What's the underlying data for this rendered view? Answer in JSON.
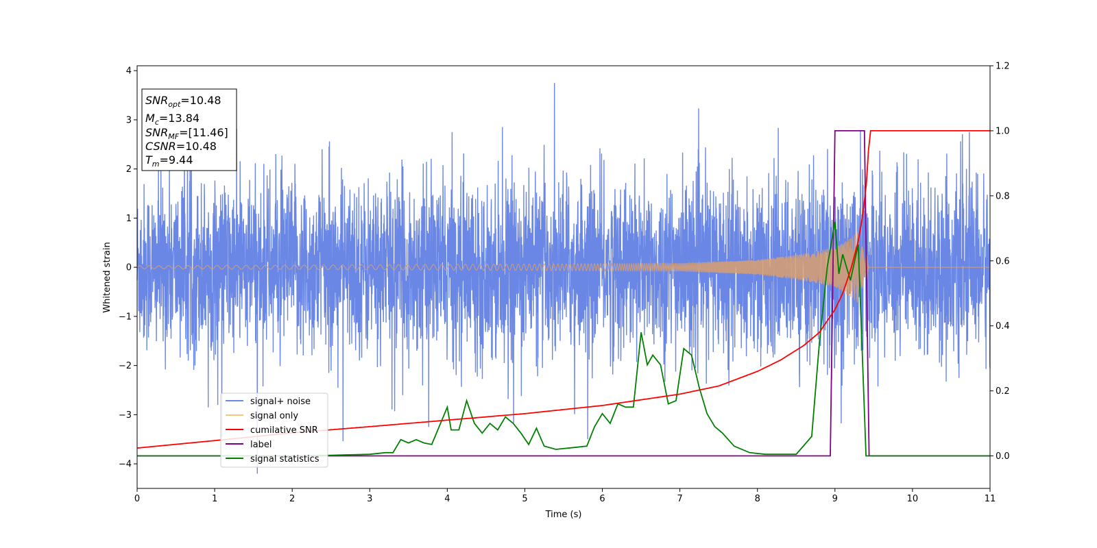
{
  "chart_data": {
    "type": "line",
    "title": "",
    "xlabel": "Time (s)",
    "ylabel": "Whitened strain",
    "xlim": [
      0,
      11
    ],
    "ylim": [
      -4.5,
      4.1
    ],
    "y2lim": [
      -0.1,
      1.2
    ],
    "xticks": [
      "0",
      "1",
      "2",
      "3",
      "4",
      "5",
      "6",
      "7",
      "8",
      "9",
      "10",
      "11"
    ],
    "yticks": [
      "4",
      "3",
      "2",
      "1",
      "0",
      "−1",
      "−2",
      "−3",
      "−4"
    ],
    "y2ticks": [
      "1.2",
      "1.0",
      "0.8",
      "0.6",
      "0.4",
      "0.2",
      "0.0"
    ],
    "grid": false,
    "legend_position": "lower-left",
    "legend": [
      "signal+ noise",
      "signal only",
      "cumilative SNR",
      "label",
      "signal statistics"
    ],
    "colors": {
      "signal_noise": "#6a87e6",
      "signal_only": "#f3c87d",
      "signal_only_burst": "#d9a070",
      "cumulative_snr": "#ff0000",
      "label": "#800080",
      "signal_statistics": "#008000"
    },
    "info_box": {
      "snr_opt": "10.48",
      "mc": "13.84",
      "snr_mf": "[11.46]",
      "csnr": "10.48",
      "tm": "9.44"
    },
    "series": [
      {
        "name": "cumilative SNR",
        "axis": "right",
        "x": [
          0,
          1,
          2,
          3,
          4,
          5,
          6,
          7,
          7.5,
          8,
          8.3,
          8.6,
          8.8,
          9.0,
          9.1,
          9.2,
          9.3,
          9.35,
          9.4,
          9.43,
          9.44,
          11
        ],
        "values": [
          0.024,
          0.047,
          0.071,
          0.09,
          0.11,
          0.13,
          0.155,
          0.19,
          0.215,
          0.26,
          0.295,
          0.34,
          0.38,
          0.45,
          0.5,
          0.57,
          0.66,
          0.73,
          0.82,
          0.92,
          1.0,
          1.0
        ]
      },
      {
        "name": "label",
        "axis": "right",
        "x": [
          0,
          8.94,
          9.0,
          9.38,
          9.44,
          11
        ],
        "values": [
          0.0,
          0.0,
          1.0,
          1.0,
          0.0,
          0.0
        ]
      },
      {
        "name": "signal statistics",
        "axis": "right",
        "x": [
          0,
          1.0,
          2.0,
          2.5,
          3.0,
          3.2,
          3.3,
          3.4,
          3.5,
          3.6,
          3.7,
          3.8,
          4.0,
          4.05,
          4.15,
          4.25,
          4.35,
          4.45,
          4.55,
          4.65,
          4.75,
          4.85,
          4.95,
          5.05,
          5.15,
          5.25,
          5.4,
          5.6,
          5.8,
          5.9,
          6.0,
          6.1,
          6.2,
          6.3,
          6.4,
          6.5,
          6.58,
          6.65,
          6.75,
          6.85,
          6.95,
          7.05,
          7.15,
          7.25,
          7.35,
          7.45,
          7.55,
          7.7,
          7.9,
          8.1,
          8.3,
          8.5,
          8.7,
          8.8,
          8.9,
          9.0,
          9.05,
          9.1,
          9.2,
          9.3,
          9.35,
          9.4,
          9.45,
          11
        ],
        "values": [
          0.0,
          0.0,
          0.0,
          0.002,
          0.005,
          0.01,
          0.01,
          0.05,
          0.04,
          0.05,
          0.04,
          0.035,
          0.15,
          0.08,
          0.08,
          0.17,
          0.1,
          0.07,
          0.1,
          0.08,
          0.12,
          0.1,
          0.07,
          0.035,
          0.085,
          0.03,
          0.02,
          0.025,
          0.03,
          0.09,
          0.13,
          0.1,
          0.16,
          0.15,
          0.15,
          0.38,
          0.28,
          0.31,
          0.28,
          0.16,
          0.17,
          0.33,
          0.31,
          0.21,
          0.13,
          0.09,
          0.07,
          0.03,
          0.01,
          0.005,
          0.005,
          0.005,
          0.06,
          0.35,
          0.58,
          0.72,
          0.56,
          0.62,
          0.54,
          0.65,
          0.33,
          0.0,
          0.0,
          0.0
        ]
      },
      {
        "name": "signal+ noise",
        "axis": "left",
        "x": [
          0,
          11
        ],
        "values": [
          -2.0,
          2.0
        ],
        "note_range": [
          -4.2,
          3.7
        ]
      },
      {
        "name": "signal only",
        "axis": "left",
        "x": [
          0,
          7,
          8,
          8.5,
          9.0,
          9.2,
          9.35,
          9.44,
          11
        ],
        "values": [
          0.03,
          0.08,
          0.15,
          0.25,
          0.4,
          0.6,
          0.8,
          0.0,
          0.0
        ]
      }
    ]
  }
}
